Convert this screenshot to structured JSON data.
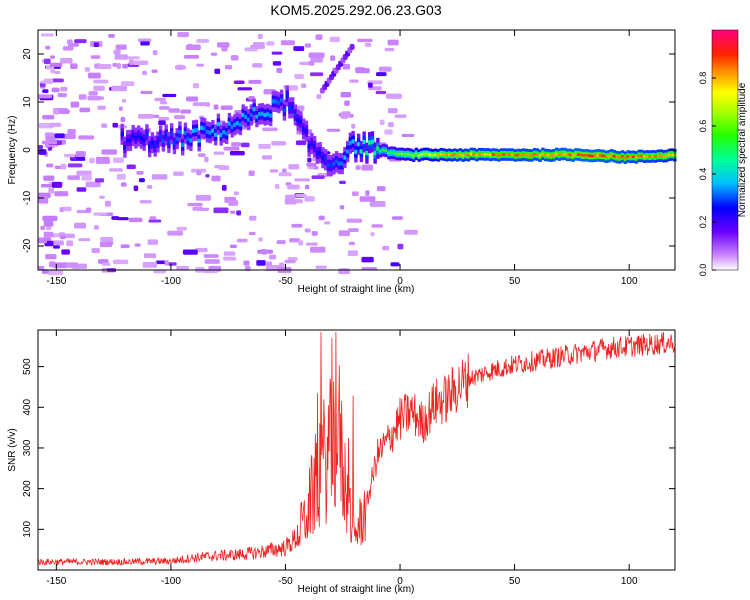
{
  "title": "KOM5.2025.292.06.23.G03",
  "chart_data": [
    {
      "type": "heatmap",
      "name": "spectrogram",
      "xlabel": "Height of straight line (km)",
      "ylabel": "Frequency (Hz)",
      "xlim": [
        -158,
        120
      ],
      "ylim": [
        -25,
        25
      ],
      "xticks": [
        -150,
        -100,
        -50,
        0,
        50,
        100
      ],
      "yticks": [
        -20,
        -10,
        0,
        10,
        20
      ],
      "colorbar": {
        "label": "Normalized spectral amplitude",
        "range": [
          0,
          1
        ],
        "ticks": [
          0.0,
          0.2,
          0.4,
          0.6,
          0.8
        ],
        "tick_labels": [
          "0.0",
          "0.2",
          "0.4",
          "0.6",
          "0.8"
        ]
      },
      "ridge": [
        {
          "x": -120,
          "f": 2,
          "a": 0.25
        },
        {
          "x": -100,
          "f": 2,
          "a": 0.3
        },
        {
          "x": -90,
          "f": 3,
          "a": 0.35
        },
        {
          "x": -80,
          "f": 4,
          "a": 0.35
        },
        {
          "x": -70,
          "f": 6,
          "a": 0.35
        },
        {
          "x": -60,
          "f": 8,
          "a": 0.35
        },
        {
          "x": -50,
          "f": 10,
          "a": 0.3
        },
        {
          "x": -40,
          "f": 1,
          "a": 0.25
        },
        {
          "x": -30,
          "f": -3,
          "a": 0.3
        },
        {
          "x": -20,
          "f": 1,
          "a": 0.4
        },
        {
          "x": -10,
          "f": 0,
          "a": 0.5
        },
        {
          "x": 0,
          "f": -1,
          "a": 0.6
        },
        {
          "x": 20,
          "f": -1,
          "a": 0.8
        },
        {
          "x": 40,
          "f": -1,
          "a": 0.85
        },
        {
          "x": 60,
          "f": -1,
          "a": 0.85
        },
        {
          "x": 80,
          "f": -1,
          "a": 0.9
        },
        {
          "x": 100,
          "f": -1.5,
          "a": 0.85
        },
        {
          "x": 120,
          "f": -1,
          "a": 0.8
        }
      ]
    },
    {
      "type": "line",
      "name": "snr",
      "xlabel": "Height of straight line (km)",
      "ylabel": "SNR (v/v)",
      "xlim": [
        -158,
        120
      ],
      "ylim": [
        0,
        590
      ],
      "xticks": [
        -150,
        -100,
        -50,
        0,
        50,
        100
      ],
      "yticks": [
        100,
        200,
        300,
        400,
        500
      ],
      "color": "#ee2222",
      "series": [
        {
          "name": "SNR",
          "x": [
            -158,
            -140,
            -120,
            -100,
            -90,
            -80,
            -70,
            -60,
            -50,
            -45,
            -40,
            -35,
            -30,
            -27,
            -25,
            -20,
            -15,
            -10,
            -5,
            0,
            5,
            10,
            15,
            20,
            25,
            30,
            40,
            50,
            60,
            70,
            80,
            90,
            100,
            110,
            120
          ],
          "y": [
            20,
            20,
            20,
            22,
            30,
            35,
            38,
            45,
            55,
            80,
            150,
            250,
            300,
            350,
            250,
            80,
            150,
            280,
            320,
            370,
            390,
            360,
            410,
            420,
            450,
            470,
            490,
            505,
            515,
            525,
            535,
            545,
            550,
            555,
            560
          ]
        }
      ]
    }
  ]
}
